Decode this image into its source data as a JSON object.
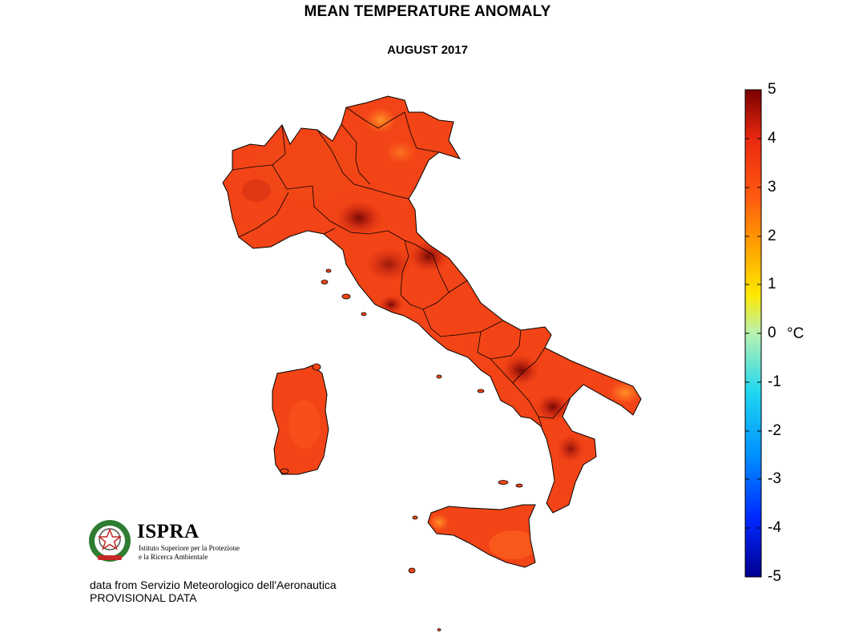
{
  "title": "MEAN TEMPERATURE ANOMALY",
  "subtitle": "AUGUST 2017",
  "colorbar": {
    "ticks": [
      "5",
      "4",
      "3",
      "2",
      "1",
      "0",
      "-1",
      "-2",
      "-3",
      "-4",
      "-5"
    ],
    "unit": "°C",
    "range": [
      -5,
      5
    ],
    "colors": [
      "#00008f",
      "#0030ff",
      "#00a0ff",
      "#30e8e0",
      "#b0f0a0",
      "#ffe000",
      "#ff9000",
      "#ff4a10",
      "#e02810",
      "#8a0000"
    ]
  },
  "map": {
    "region": "Italy",
    "dominant_color": "#f24416",
    "hotspot_color": "#8a0a08",
    "cooler_color": "#ff8a22"
  },
  "logo": {
    "name": "ISPRA",
    "subtitle_line1": "Istituto Superiore per la Protezione",
    "subtitle_line2": "e la Ricerca Ambientale"
  },
  "credits": {
    "source": "data from Servizio Meteorologico dell'Aeronautica",
    "status": "PROVISIONAL DATA"
  }
}
